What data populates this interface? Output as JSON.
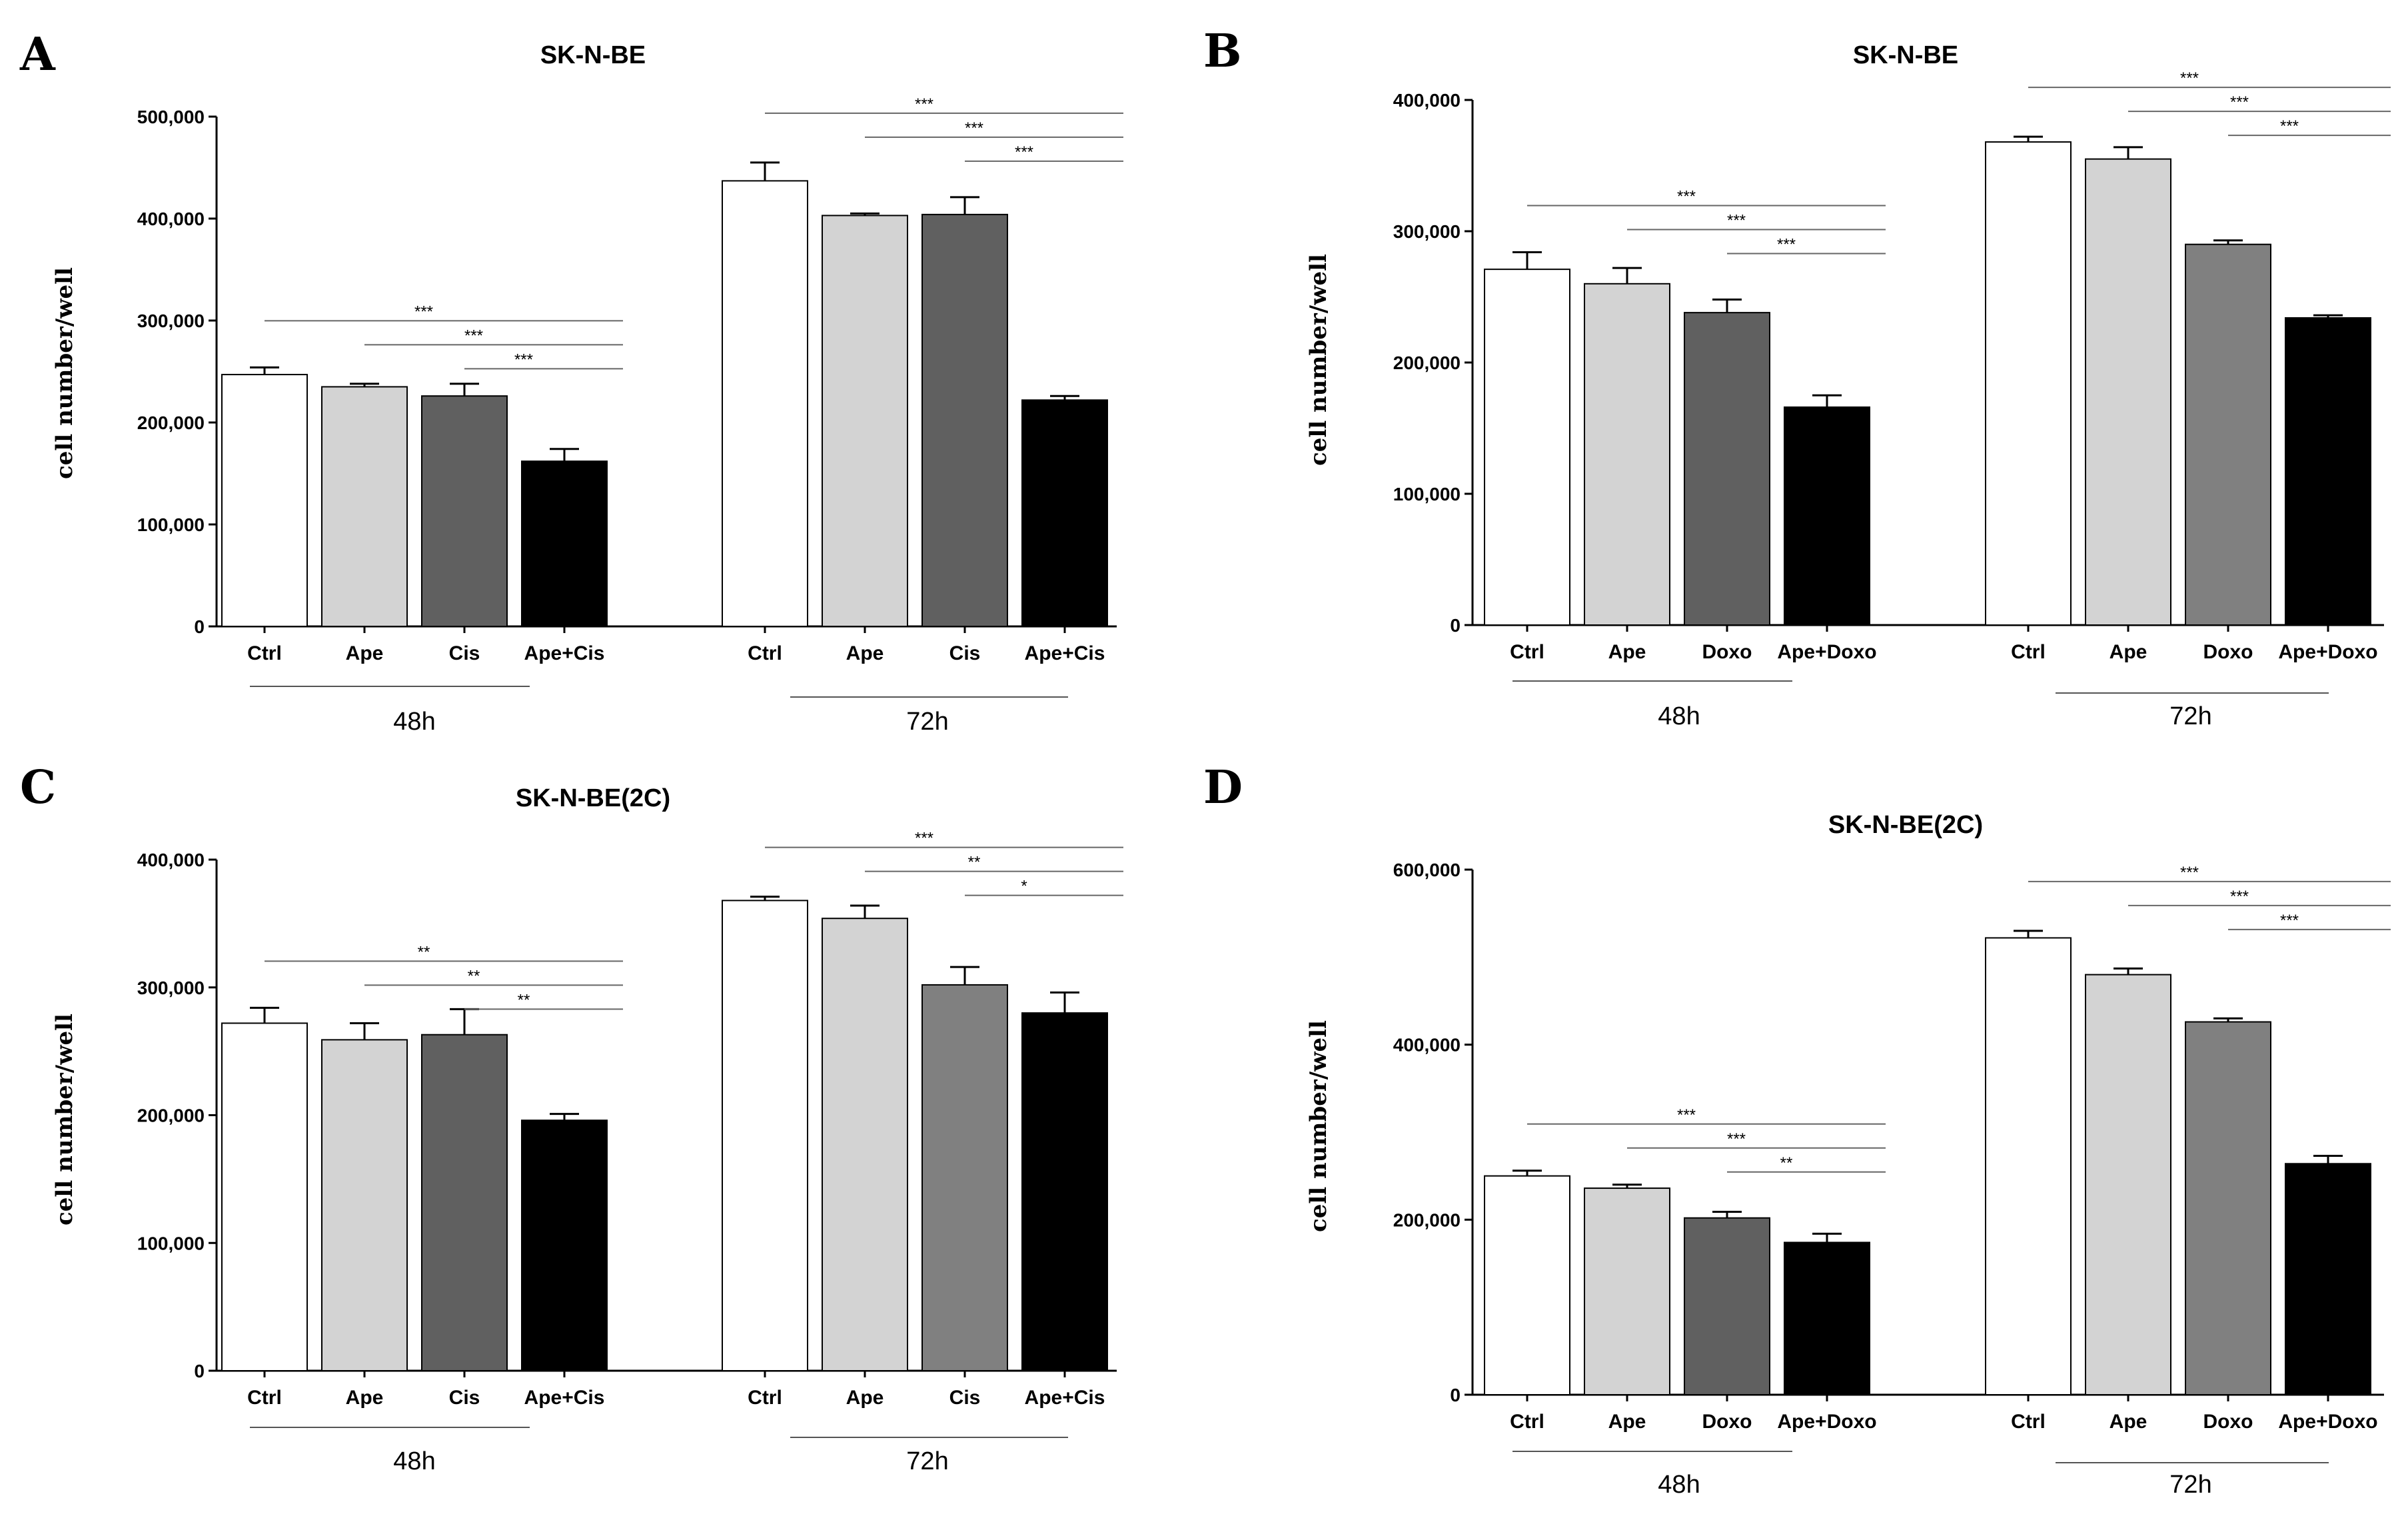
{
  "chart_data": [
    {
      "panel": "A",
      "type": "bar",
      "title": "SK-N-BE",
      "ylabel": "cell number/well",
      "ylim": [
        0,
        500000
      ],
      "yticks": [
        0,
        100000,
        200000,
        300000,
        400000,
        500000
      ],
      "ytick_labels": [
        "0",
        "100,000",
        "200,000",
        "300,000",
        "400,000",
        "500,000"
      ],
      "groups": [
        {
          "label": "48h",
          "categories": [
            "Ctrl",
            "Ape",
            "Cis",
            "Ape+Cis"
          ],
          "values": [
            247000,
            235000,
            226000,
            162000
          ],
          "errors": [
            7000,
            3000,
            12000,
            12000
          ]
        },
        {
          "label": "72h",
          "categories": [
            "Ctrl",
            "Ape",
            "Cis",
            "Ape+Cis"
          ],
          "values": [
            437000,
            403000,
            404000,
            222000
          ],
          "errors": [
            18000,
            2000,
            17000,
            4000
          ]
        }
      ],
      "colors": [
        "#ffffff",
        "#d3d3d3",
        "#606060",
        "#000000"
      ],
      "significance": [
        {
          "group": 0,
          "from": 0,
          "to": 3,
          "label": "***"
        },
        {
          "group": 0,
          "from": 1,
          "to": 3,
          "label": "***"
        },
        {
          "group": 0,
          "from": 2,
          "to": 3,
          "label": "***"
        },
        {
          "group": 1,
          "from": 0,
          "to": 3,
          "label": "***"
        },
        {
          "group": 1,
          "from": 1,
          "to": 3,
          "label": "***"
        },
        {
          "group": 1,
          "from": 2,
          "to": 3,
          "label": "***"
        }
      ]
    },
    {
      "panel": "B",
      "type": "bar",
      "title": "SK-N-BE",
      "ylabel": "cell number/well",
      "ylim": [
        0,
        400000
      ],
      "yticks": [
        0,
        100000,
        200000,
        300000,
        400000
      ],
      "ytick_labels": [
        "0",
        "100,000",
        "200,000",
        "300,000",
        "400,000"
      ],
      "groups": [
        {
          "label": "48h",
          "categories": [
            "Ctrl",
            "Ape",
            "Doxo",
            "Ape+Doxo"
          ],
          "values": [
            271000,
            260000,
            238000,
            166000
          ],
          "errors": [
            13000,
            12000,
            10000,
            9000
          ]
        },
        {
          "label": "72h",
          "categories": [
            "Ctrl",
            "Ape",
            "Doxo",
            "Ape+Doxo"
          ],
          "values": [
            368000,
            355000,
            290000,
            234000
          ],
          "errors": [
            4000,
            9000,
            3000,
            2000
          ]
        }
      ],
      "colors": [
        "#ffffff",
        "#d3d3d3",
        "#606060",
        "#000000"
      ],
      "colors72": [
        "#ffffff",
        "#d3d3d3",
        "#808080",
        "#000000"
      ],
      "significance": [
        {
          "group": 0,
          "from": 0,
          "to": 3,
          "label": "***"
        },
        {
          "group": 0,
          "from": 1,
          "to": 3,
          "label": "***"
        },
        {
          "group": 0,
          "from": 2,
          "to": 3,
          "label": "***"
        },
        {
          "group": 1,
          "from": 0,
          "to": 3,
          "label": "***"
        },
        {
          "group": 1,
          "from": 1,
          "to": 3,
          "label": "***"
        },
        {
          "group": 1,
          "from": 2,
          "to": 3,
          "label": "***"
        }
      ]
    },
    {
      "panel": "C",
      "type": "bar",
      "title": "SK-N-BE(2C)",
      "ylabel": "cell number/well",
      "ylim": [
        0,
        400000
      ],
      "yticks": [
        0,
        100000,
        200000,
        300000,
        400000
      ],
      "ytick_labels": [
        "0",
        "100,000",
        "200,000",
        "300,000",
        "400,000"
      ],
      "groups": [
        {
          "label": "48h",
          "categories": [
            "Ctrl",
            "Ape",
            "Cis",
            "Ape+Cis"
          ],
          "values": [
            272000,
            259000,
            263000,
            196000
          ],
          "errors": [
            12000,
            13000,
            20000,
            5000
          ]
        },
        {
          "label": "72h",
          "categories": [
            "Ctrl",
            "Ape",
            "Cis",
            "Ape+Cis"
          ],
          "values": [
            368000,
            354000,
            302000,
            280000
          ],
          "errors": [
            3000,
            10000,
            14000,
            16000
          ]
        }
      ],
      "colors": [
        "#ffffff",
        "#d3d3d3",
        "#606060",
        "#000000"
      ],
      "colors72": [
        "#ffffff",
        "#d3d3d3",
        "#808080",
        "#000000"
      ],
      "significance": [
        {
          "group": 0,
          "from": 0,
          "to": 3,
          "label": "**"
        },
        {
          "group": 0,
          "from": 1,
          "to": 3,
          "label": "**"
        },
        {
          "group": 0,
          "from": 2,
          "to": 3,
          "label": "**"
        },
        {
          "group": 1,
          "from": 0,
          "to": 3,
          "label": "***"
        },
        {
          "group": 1,
          "from": 1,
          "to": 3,
          "label": "**"
        },
        {
          "group": 1,
          "from": 2,
          "to": 3,
          "label": "*"
        }
      ]
    },
    {
      "panel": "D",
      "type": "bar",
      "title": "SK-N-BE(2C)",
      "ylabel": "cell number/well",
      "ylim": [
        0,
        600000
      ],
      "yticks": [
        0,
        200000,
        400000,
        600000
      ],
      "ytick_labels": [
        "0",
        "200,000",
        "400,000",
        "600,000"
      ],
      "groups": [
        {
          "label": "48h",
          "categories": [
            "Ctrl",
            "Ape",
            "Doxo",
            "Ape+Doxo"
          ],
          "values": [
            250000,
            236000,
            202000,
            174000
          ],
          "errors": [
            6000,
            4000,
            7000,
            10000
          ]
        },
        {
          "label": "72h",
          "categories": [
            "Ctrl",
            "Ape",
            "Doxo",
            "Ape+Doxo"
          ],
          "values": [
            522000,
            480000,
            426000,
            264000
          ],
          "errors": [
            8000,
            7000,
            4000,
            9000
          ]
        }
      ],
      "colors": [
        "#ffffff",
        "#d3d3d3",
        "#606060",
        "#000000"
      ],
      "colors72": [
        "#ffffff",
        "#d3d3d3",
        "#808080",
        "#000000"
      ],
      "significance": [
        {
          "group": 0,
          "from": 0,
          "to": 3,
          "label": "***"
        },
        {
          "group": 0,
          "from": 1,
          "to": 3,
          "label": "***"
        },
        {
          "group": 0,
          "from": 2,
          "to": 3,
          "label": "**"
        },
        {
          "group": 1,
          "from": 0,
          "to": 3,
          "label": "***"
        },
        {
          "group": 1,
          "from": 1,
          "to": 3,
          "label": "***"
        },
        {
          "group": 1,
          "from": 2,
          "to": 3,
          "label": "***"
        }
      ]
    }
  ]
}
